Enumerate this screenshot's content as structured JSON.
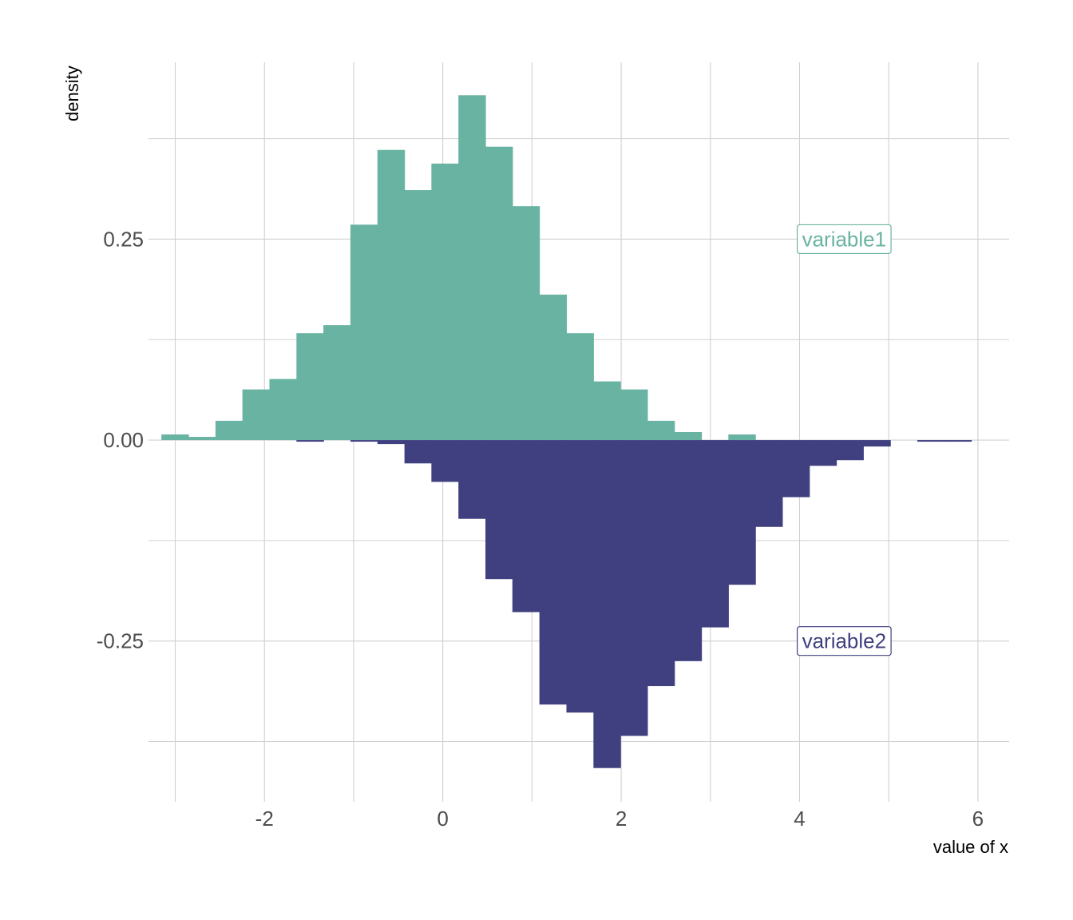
{
  "chart_data": {
    "type": "bar",
    "subtype": "mirrored-histogram",
    "xlabel": "value of x",
    "ylabel": "density",
    "xlim": [
      -3.3,
      6.35
    ],
    "ylim": [
      -0.45,
      0.47
    ],
    "x_ticks": [
      -2,
      0,
      2,
      4,
      6
    ],
    "x_tick_labels": [
      "-2",
      "0",
      "2",
      "4",
      "6"
    ],
    "y_ticks": [
      -0.25,
      0.0,
      0.25
    ],
    "y_tick_labels": [
      "-0.25",
      "0.00",
      "0.25"
    ],
    "grid": true,
    "bin_width": 0.3027,
    "series": [
      {
        "name": "variable1",
        "color": "#69b3a2",
        "direction": "up",
        "bin_starts": [
          -3.155,
          -2.852,
          -2.549,
          -2.247,
          -1.944,
          -1.641,
          -1.339,
          -1.036,
          -0.733,
          -0.43,
          -0.128,
          0.175,
          0.478,
          0.78,
          1.083,
          1.386,
          1.689,
          1.991,
          2.294,
          2.597,
          2.899,
          3.202
        ],
        "values": [
          0.007,
          0.004,
          0.024,
          0.063,
          0.076,
          0.133,
          0.143,
          0.268,
          0.361,
          0.311,
          0.344,
          0.429,
          0.365,
          0.291,
          0.181,
          0.133,
          0.073,
          0.063,
          0.024,
          0.01,
          0.0,
          0.007
        ]
      },
      {
        "name": "variable2",
        "color": "#404080",
        "direction": "down",
        "bin_starts": [
          -1.641,
          -1.339,
          -1.036,
          -0.733,
          -0.43,
          -0.128,
          0.175,
          0.478,
          0.78,
          1.083,
          1.386,
          1.689,
          1.991,
          2.294,
          2.597,
          2.899,
          3.202,
          3.504,
          3.807,
          4.11,
          4.412,
          4.715,
          5.018,
          5.321,
          5.623
        ],
        "values": [
          0.002,
          0.0,
          0.002,
          0.005,
          0.029,
          0.052,
          0.098,
          0.173,
          0.214,
          0.329,
          0.339,
          0.408,
          0.368,
          0.306,
          0.275,
          0.233,
          0.18,
          0.108,
          0.071,
          0.032,
          0.025,
          0.008,
          0.0,
          0.002,
          0.002
        ]
      }
    ],
    "annotations": [
      {
        "text": "variable1",
        "x": 4.5,
        "y": 0.25,
        "color": "#69b3a2"
      },
      {
        "text": "variable2",
        "x": 4.5,
        "y": -0.25,
        "color": "#404080"
      }
    ]
  }
}
